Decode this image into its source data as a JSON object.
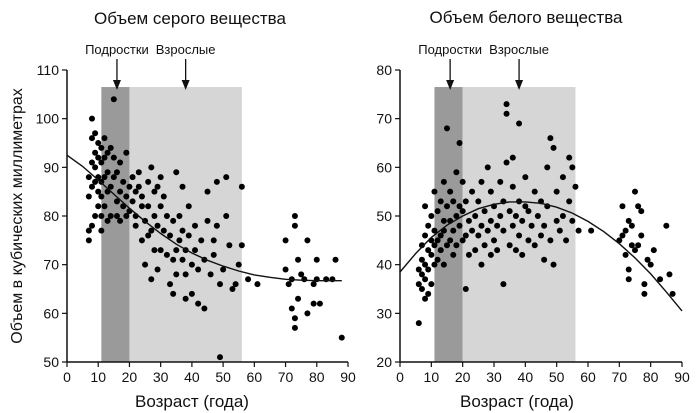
{
  "figure": {
    "ylabel": "Объем в кубических миллиметрах"
  },
  "chart_data": [
    {
      "type": "scatter",
      "title": "Объем серого вещества",
      "xlabel": "Возраст (года)",
      "xlim": [
        0,
        90
      ],
      "ylim": [
        50,
        110
      ],
      "xticks": [
        0,
        10,
        20,
        30,
        40,
        50,
        60,
        70,
        80,
        90
      ],
      "yticks": [
        50,
        60,
        70,
        80,
        90,
        100,
        110
      ],
      "bands": [
        {
          "from": 11,
          "to": 20,
          "color": "#9a9a9a",
          "label": "Подростки",
          "arrow_x": 16
        },
        {
          "from": 20,
          "to": 56,
          "color": "#d6d6d6",
          "label": "Взрослые",
          "arrow_x": 38
        }
      ],
      "trend": {
        "x": [
          0,
          5,
          10,
          15,
          20,
          25,
          30,
          35,
          40,
          45,
          50,
          55,
          60,
          65,
          70,
          75,
          80,
          85,
          88
        ],
        "y": [
          92.5,
          90.2,
          87.4,
          84.5,
          81.6,
          78.9,
          76.4,
          74.2,
          72.4,
          70.9,
          69.7,
          68.7,
          67.9,
          67.4,
          67.0,
          66.8,
          66.7,
          66.7,
          66.7
        ]
      },
      "points": [
        [
          7,
          75
        ],
        [
          7,
          77
        ],
        [
          7,
          84
        ],
        [
          7,
          88
        ],
        [
          8,
          78
        ],
        [
          8,
          86
        ],
        [
          8,
          91
        ],
        [
          8,
          96
        ],
        [
          8,
          100
        ],
        [
          9,
          80
        ],
        [
          9,
          87
        ],
        [
          9,
          90
        ],
        [
          9,
          93
        ],
        [
          9,
          97
        ],
        [
          10,
          82
        ],
        [
          10,
          85
        ],
        [
          10,
          88
        ],
        [
          10,
          92
        ],
        [
          10,
          95
        ],
        [
          11,
          77
        ],
        [
          11,
          80
        ],
        [
          11,
          84
        ],
        [
          11,
          87
        ],
        [
          11,
          91
        ],
        [
          11,
          94
        ],
        [
          12,
          82
        ],
        [
          12,
          88
        ],
        [
          12,
          92
        ],
        [
          12,
          96
        ],
        [
          13,
          79
        ],
        [
          13,
          85
        ],
        [
          13,
          89
        ],
        [
          13,
          93
        ],
        [
          14,
          80
        ],
        [
          14,
          86
        ],
        [
          14,
          94
        ],
        [
          15,
          88
        ],
        [
          15,
          92
        ],
        [
          15,
          104
        ],
        [
          16,
          80
        ],
        [
          16,
          83
        ],
        [
          16,
          89
        ],
        [
          17,
          79
        ],
        [
          17,
          85
        ],
        [
          17,
          91
        ],
        [
          18,
          82
        ],
        [
          18,
          87
        ],
        [
          19,
          80
        ],
        [
          19,
          84
        ],
        [
          19,
          93
        ],
        [
          20,
          81
        ],
        [
          20,
          86
        ],
        [
          21,
          83
        ],
        [
          21,
          88
        ],
        [
          22,
          78
        ],
        [
          22,
          80
        ],
        [
          22,
          85
        ],
        [
          23,
          86
        ],
        [
          23,
          89
        ],
        [
          24,
          75
        ],
        [
          24,
          82
        ],
        [
          24,
          84
        ],
        [
          25,
          70
        ],
        [
          25,
          79
        ],
        [
          26,
          76
        ],
        [
          26,
          82
        ],
        [
          26,
          87
        ],
        [
          27,
          67
        ],
        [
          27,
          77
        ],
        [
          27,
          90
        ],
        [
          28,
          73
        ],
        [
          28,
          80
        ],
        [
          28,
          85
        ],
        [
          29,
          69
        ],
        [
          29,
          78
        ],
        [
          29,
          86
        ],
        [
          30,
          73
        ],
        [
          30,
          82
        ],
        [
          30,
          88
        ],
        [
          31,
          77
        ],
        [
          31,
          84
        ],
        [
          32,
          72
        ],
        [
          32,
          80
        ],
        [
          33,
          66
        ],
        [
          33,
          76
        ],
        [
          34,
          64
        ],
        [
          34,
          71
        ],
        [
          34,
          79
        ],
        [
          35,
          68
        ],
        [
          35,
          73
        ],
        [
          35,
          89
        ],
        [
          36,
          75
        ],
        [
          36,
          80
        ],
        [
          37,
          71
        ],
        [
          37,
          77
        ],
        [
          37,
          86
        ],
        [
          38,
          63
        ],
        [
          38,
          68
        ],
        [
          38,
          73
        ],
        [
          39,
          76
        ],
        [
          39,
          82
        ],
        [
          40,
          64
        ],
        [
          40,
          70
        ],
        [
          41,
          73
        ],
        [
          41,
          78
        ],
        [
          42,
          62
        ],
        [
          42,
          69
        ],
        [
          43,
          75
        ],
        [
          44,
          61
        ],
        [
          44,
          71
        ],
        [
          45,
          79
        ],
        [
          45,
          85
        ],
        [
          46,
          68
        ],
        [
          47,
          72
        ],
        [
          47,
          75
        ],
        [
          48,
          78
        ],
        [
          48,
          87
        ],
        [
          49,
          51
        ],
        [
          49,
          66
        ],
        [
          50,
          69
        ],
        [
          51,
          80
        ],
        [
          51,
          88
        ],
        [
          52,
          74
        ],
        [
          53,
          65
        ],
        [
          54,
          66
        ],
        [
          55,
          70
        ],
        [
          56,
          74
        ],
        [
          56,
          86
        ],
        [
          58,
          67
        ],
        [
          61,
          66
        ],
        [
          70,
          75
        ],
        [
          70,
          69
        ],
        [
          71,
          66
        ],
        [
          72,
          61
        ],
        [
          72,
          67
        ],
        [
          73,
          80
        ],
        [
          73,
          78
        ],
        [
          73,
          59
        ],
        [
          73,
          57
        ],
        [
          74,
          63
        ],
        [
          74,
          71
        ],
        [
          75,
          68
        ],
        [
          76,
          67
        ],
        [
          77,
          75
        ],
        [
          77,
          60
        ],
        [
          79,
          62
        ],
        [
          79,
          66
        ],
        [
          80,
          71
        ],
        [
          80,
          67
        ],
        [
          81,
          62
        ],
        [
          83,
          67
        ],
        [
          85,
          67
        ],
        [
          86,
          71
        ],
        [
          88,
          55
        ]
      ]
    },
    {
      "type": "scatter",
      "title": "Объем белого вещества",
      "xlabel": "Возраст (года)",
      "xlim": [
        0,
        90
      ],
      "ylim": [
        20,
        80
      ],
      "xticks": [
        0,
        10,
        20,
        30,
        40,
        50,
        60,
        70,
        80,
        90
      ],
      "yticks": [
        20,
        30,
        40,
        50,
        60,
        70,
        80
      ],
      "bands": [
        {
          "from": 11,
          "to": 20,
          "color": "#9a9a9a",
          "label": "Подростки",
          "arrow_x": 16
        },
        {
          "from": 20,
          "to": 56,
          "color": "#d6d6d6",
          "label": "Взрослые",
          "arrow_x": 38
        }
      ],
      "trend": {
        "x": [
          0,
          5,
          10,
          15,
          20,
          25,
          30,
          35,
          40,
          45,
          50,
          55,
          60,
          65,
          70,
          75,
          80,
          85,
          90
        ],
        "y": [
          38.5,
          42.3,
          45.6,
          48.1,
          50.0,
          51.5,
          52.4,
          52.9,
          52.9,
          52.6,
          51.8,
          50.6,
          48.9,
          46.8,
          44.3,
          41.4,
          38.1,
          34.4,
          30.5
        ]
      },
      "points": [
        [
          6,
          28
        ],
        [
          6,
          36
        ],
        [
          6,
          39
        ],
        [
          7,
          35
        ],
        [
          7,
          38
        ],
        [
          7,
          41
        ],
        [
          7,
          44
        ],
        [
          8,
          33
        ],
        [
          8,
          37
        ],
        [
          8,
          40
        ],
        [
          8,
          46
        ],
        [
          8,
          52
        ],
        [
          9,
          34
        ],
        [
          9,
          39
        ],
        [
          9,
          43
        ],
        [
          9,
          48
        ],
        [
          10,
          36
        ],
        [
          10,
          42
        ],
        [
          10,
          45
        ],
        [
          10,
          50
        ],
        [
          11,
          40
        ],
        [
          11,
          44
        ],
        [
          11,
          47
        ],
        [
          11,
          55
        ],
        [
          12,
          41
        ],
        [
          12,
          45
        ],
        [
          12,
          51
        ],
        [
          13,
          43
        ],
        [
          13,
          46
        ],
        [
          13,
          53
        ],
        [
          14,
          40
        ],
        [
          14,
          47
        ],
        [
          14,
          49
        ],
        [
          14,
          57
        ],
        [
          15,
          44
        ],
        [
          15,
          52
        ],
        [
          15,
          68
        ],
        [
          16,
          45
        ],
        [
          16,
          49
        ],
        [
          16,
          55
        ],
        [
          17,
          42
        ],
        [
          17,
          47
        ],
        [
          17,
          53
        ],
        [
          18,
          44
        ],
        [
          18,
          50
        ],
        [
          18,
          59
        ],
        [
          19,
          48
        ],
        [
          19,
          52
        ],
        [
          19,
          65
        ],
        [
          20,
          45
        ],
        [
          20,
          51
        ],
        [
          20,
          57
        ],
        [
          21,
          35
        ],
        [
          21,
          46
        ],
        [
          21,
          53
        ],
        [
          22,
          42
        ],
        [
          22,
          49
        ],
        [
          23,
          47
        ],
        [
          23,
          55
        ],
        [
          24,
          43
        ],
        [
          24,
          50
        ],
        [
          25,
          46
        ],
        [
          25,
          53
        ],
        [
          26,
          40
        ],
        [
          26,
          48
        ],
        [
          26,
          57
        ],
        [
          27,
          44
        ],
        [
          27,
          51
        ],
        [
          28,
          47
        ],
        [
          28,
          60
        ],
        [
          29,
          42
        ],
        [
          29,
          49
        ],
        [
          29,
          55
        ],
        [
          30,
          45
        ],
        [
          30,
          52
        ],
        [
          31,
          43
        ],
        [
          31,
          48
        ],
        [
          32,
          50
        ],
        [
          32,
          57
        ],
        [
          33,
          36
        ],
        [
          33,
          47
        ],
        [
          33,
          53
        ],
        [
          34,
          71
        ],
        [
          34,
          73
        ],
        [
          34,
          61
        ],
        [
          35,
          44
        ],
        [
          35,
          51
        ],
        [
          36,
          48
        ],
        [
          36,
          56
        ],
        [
          36,
          62
        ],
        [
          37,
          43
        ],
        [
          37,
          50
        ],
        [
          38,
          46
        ],
        [
          38,
          53
        ],
        [
          38,
          69
        ],
        [
          39,
          42
        ],
        [
          39,
          49
        ],
        [
          40,
          52
        ],
        [
          40,
          58
        ],
        [
          41,
          45
        ],
        [
          41,
          51
        ],
        [
          42,
          48
        ],
        [
          43,
          44
        ],
        [
          43,
          55
        ],
        [
          44,
          50
        ],
        [
          45,
          46
        ],
        [
          45,
          53
        ],
        [
          46,
          41
        ],
        [
          46,
          48
        ],
        [
          47,
          52
        ],
        [
          47,
          60
        ],
        [
          48,
          45
        ],
        [
          48,
          66
        ],
        [
          49,
          40
        ],
        [
          49,
          64
        ],
        [
          50,
          49
        ],
        [
          50,
          55
        ],
        [
          51,
          47
        ],
        [
          52,
          50
        ],
        [
          52,
          58
        ],
        [
          53,
          45
        ],
        [
          54,
          53
        ],
        [
          54,
          62
        ],
        [
          55,
          49
        ],
        [
          55,
          60
        ],
        [
          56,
          56
        ],
        [
          57,
          47
        ],
        [
          61,
          47
        ],
        [
          70,
          45
        ],
        [
          71,
          46
        ],
        [
          71,
          52
        ],
        [
          72,
          42
        ],
        [
          72,
          47
        ],
        [
          73,
          39
        ],
        [
          73,
          49
        ],
        [
          73,
          37
        ],
        [
          74,
          44
        ],
        [
          74,
          48
        ],
        [
          75,
          55
        ],
        [
          75,
          43
        ],
        [
          76,
          52
        ],
        [
          76,
          44
        ],
        [
          77,
          46
        ],
        [
          77,
          51
        ],
        [
          78,
          36
        ],
        [
          78,
          34
        ],
        [
          79,
          41
        ],
        [
          80,
          40
        ],
        [
          81,
          43
        ],
        [
          83,
          37
        ],
        [
          85,
          48
        ],
        [
          86,
          38
        ],
        [
          87,
          34
        ]
      ]
    }
  ]
}
